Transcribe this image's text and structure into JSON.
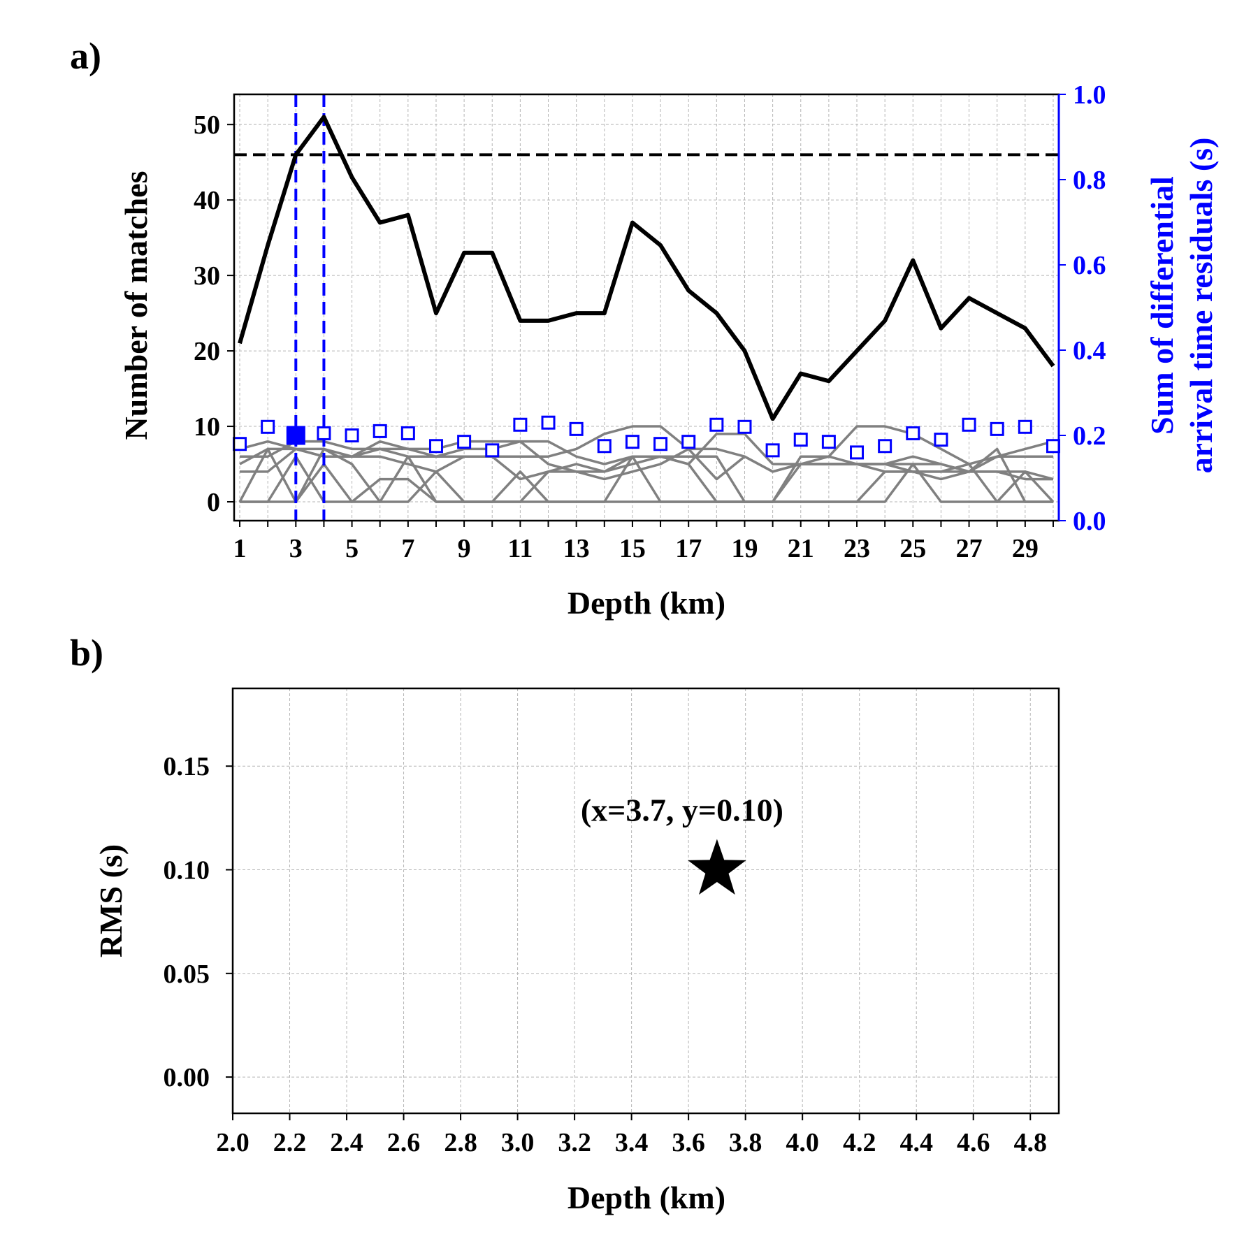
{
  "colors": {
    "primary": "#000000",
    "residual": "#0000ff",
    "station": "#808080"
  },
  "chart_data": [
    {
      "panel": "a)",
      "type": "line",
      "xlabel": "Depth (km)",
      "ylabel": "Number of matches",
      "ylabel_right_lines": [
        "Sum of differential",
        "arrival time residuals (s)"
      ],
      "xlim": [
        0.8,
        30.2
      ],
      "ylim": [
        -2.5,
        54
      ],
      "ylim_right": [
        0.0,
        1.0
      ],
      "x_ticks": [
        1,
        3,
        5,
        7,
        9,
        11,
        13,
        15,
        17,
        19,
        21,
        23,
        25,
        27,
        29
      ],
      "y_ticks": [
        0,
        10,
        20,
        30,
        40,
        50
      ],
      "y_right_ticks": [
        "0.0",
        "0.2",
        "0.4",
        "0.6",
        "0.8",
        "1.0"
      ],
      "grid": true,
      "threshold": 46,
      "vlines": [
        3,
        4
      ],
      "best_residual_depth": 3,
      "x": [
        1,
        2,
        3,
        4,
        5,
        6,
        7,
        8,
        9,
        10,
        11,
        12,
        13,
        14,
        15,
        16,
        17,
        18,
        19,
        20,
        21,
        22,
        23,
        24,
        25,
        26,
        27,
        28,
        29,
        30
      ],
      "series": [
        {
          "role": "matches",
          "values": [
            21,
            34,
            46,
            51,
            43,
            37,
            38,
            25,
            33,
            33,
            24,
            24,
            25,
            25,
            37,
            34,
            28,
            25,
            20,
            11,
            17,
            16,
            20,
            24,
            32,
            23,
            27,
            25,
            23,
            18
          ]
        },
        {
          "role": "residuals",
          "values": [
            0.18,
            0.22,
            0.2,
            0.205,
            0.2,
            0.21,
            0.205,
            0.175,
            0.185,
            0.165,
            0.225,
            0.23,
            0.215,
            0.175,
            0.185,
            0.18,
            0.185,
            0.225,
            0.22,
            0.165,
            0.19,
            0.185,
            0.16,
            0.175,
            0.205,
            0.19,
            0.225,
            0.215,
            0.22,
            0.175
          ]
        }
      ],
      "station_lines": [
        [
          7,
          8,
          7,
          7,
          6,
          7,
          7,
          6,
          6,
          6,
          6,
          6,
          7,
          9,
          10,
          10,
          7,
          7,
          6,
          4,
          5,
          6,
          10,
          10,
          9,
          7,
          5,
          6,
          7,
          8
        ],
        [
          6,
          6,
          8,
          8,
          7,
          7,
          6,
          6,
          7,
          7,
          8,
          8,
          6,
          5,
          6,
          6,
          5,
          9,
          9,
          5,
          5,
          5,
          5,
          5,
          5,
          5,
          4,
          6,
          6,
          6
        ],
        [
          5,
          7,
          7,
          6,
          6,
          8,
          7,
          7,
          8,
          8,
          8,
          5,
          4,
          4,
          5,
          6,
          6,
          6,
          0,
          0,
          6,
          6,
          5,
          5,
          6,
          5,
          4,
          4,
          3,
          3
        ],
        [
          4,
          4,
          7,
          6,
          6,
          6,
          5,
          4,
          6,
          6,
          3,
          4,
          5,
          4,
          6,
          6,
          5,
          0,
          0,
          0,
          5,
          5,
          5,
          4,
          4,
          4,
          4,
          4,
          4,
          3
        ],
        [
          0,
          7,
          0,
          7,
          5,
          0,
          0,
          4,
          0,
          0,
          0,
          4,
          4,
          3,
          4,
          5,
          7,
          3,
          6,
          4,
          5,
          5,
          5,
          5,
          4,
          3,
          4,
          7,
          0,
          0
        ],
        [
          0,
          0,
          6,
          0,
          0,
          3,
          3,
          0,
          0,
          0,
          4,
          0,
          0,
          0,
          6,
          0,
          0,
          0,
          0,
          0,
          0,
          0,
          0,
          4,
          4,
          4,
          5,
          0,
          4,
          0
        ],
        [
          0,
          0,
          0,
          5,
          0,
          0,
          6,
          0,
          0,
          0,
          0,
          0,
          0,
          0,
          0,
          0,
          0,
          0,
          0,
          0,
          0,
          0,
          0,
          0,
          5,
          0,
          0,
          0,
          0,
          0
        ]
      ]
    },
    {
      "panel": "b)",
      "type": "scatter",
      "xlabel": "Depth (km)",
      "ylabel": "RMS (s)",
      "xlim": [
        2.0,
        4.9
      ],
      "ylim": [
        -0.0175,
        0.1875
      ],
      "x_ticks": [
        "2.0",
        "2.2",
        "2.4",
        "2.6",
        "2.8",
        "3.0",
        "3.2",
        "3.4",
        "3.6",
        "3.8",
        "4.0",
        "4.2",
        "4.4",
        "4.6",
        "4.8"
      ],
      "y_ticks": [
        "0.00",
        "0.05",
        "0.10",
        "0.15"
      ],
      "grid": true,
      "points": [
        {
          "x": 3.7,
          "y": 0.1,
          "marker": "star"
        }
      ],
      "annotation": "(x=3.7, y=0.10)"
    }
  ]
}
